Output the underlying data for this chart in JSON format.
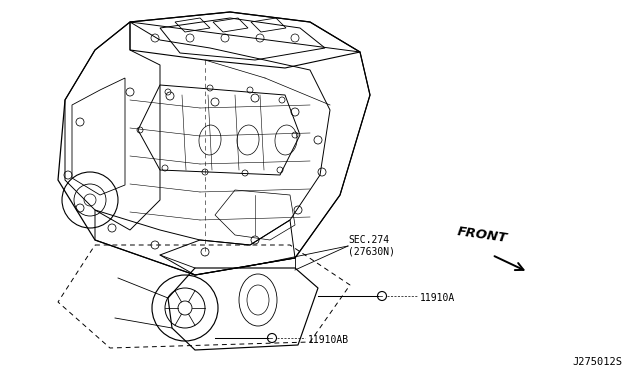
{
  "background_color": "#ffffff",
  "diagram_code": "J275012S",
  "front_label": "FRONT",
  "sec_label": "SEC.274",
  "sec_sub_label": "(27630N)",
  "part_11910A": "11910A",
  "part_11910AB": "11910AB",
  "line_color": "#000000",
  "gray": "#888888"
}
